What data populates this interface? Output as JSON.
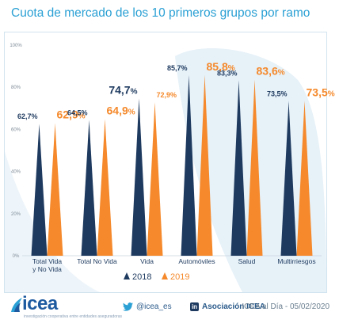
{
  "title": "Cuota de mercado de los 10 primeros grupos por ramo",
  "colors": {
    "series_2018": "#1e3a5f",
    "series_2019": "#f5892b",
    "title": "#2aa0d4"
  },
  "chart_data": {
    "type": "bar",
    "categories": [
      "Total Vida\ny No Vida",
      "Total No Vida",
      "Vida",
      "Automóviles",
      "Salud",
      "Multirriesgos"
    ],
    "series": [
      {
        "name": "2018",
        "values": [
          62.7,
          64.5,
          74.7,
          85.7,
          83.3,
          73.5
        ],
        "labels": [
          "62,7%",
          "64,5%",
          "74,7%",
          "85,7%",
          "83,3%",
          "73,5%"
        ]
      },
      {
        "name": "2019",
        "values": [
          62.9,
          64.9,
          72.9,
          85.8,
          83.6,
          73.5
        ],
        "labels": [
          "62,9%",
          "64,9%",
          "72,9%",
          "85,8%",
          "83,6%",
          "73,5%"
        ]
      }
    ],
    "ylim": [
      0,
      100
    ],
    "yticks": [
      "0%",
      "20%",
      "40%",
      "60%",
      "80%",
      "100%"
    ],
    "legend": "bottom-center",
    "grid": false
  },
  "footer": {
    "logo_text": "icea",
    "logo_subtitle": "investigación cooperativa entre entidades aseguradoras",
    "twitter": "@icea_es",
    "linkedin": "Asociación ICEA",
    "stamp": "ICEA al Día - 05/02/2020"
  }
}
